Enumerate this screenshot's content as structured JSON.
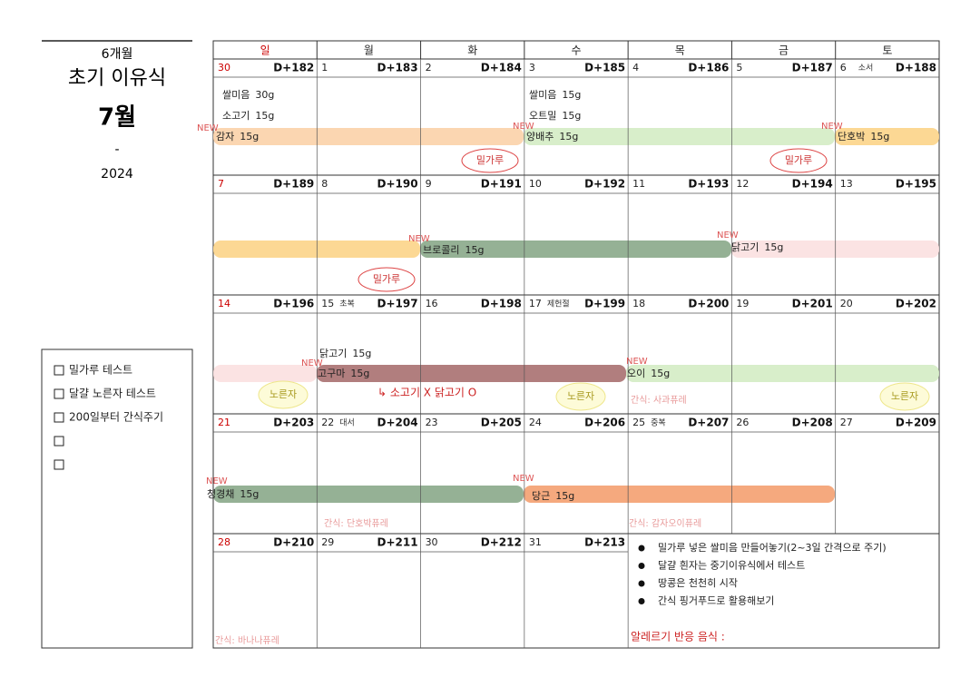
{
  "header": {
    "age": "6개월",
    "title": "초기 이유식",
    "month": "7월",
    "dash": "-",
    "year": "2024"
  },
  "checklist": [
    "밀가루 테스트",
    "달걀 노른자 테스트",
    "200일부터 간식주기"
  ],
  "weekdays": [
    "일",
    "월",
    "화",
    "수",
    "목",
    "금",
    "토"
  ],
  "days": [
    {
      "date": "30",
      "dday": "D+182"
    },
    {
      "date": "1",
      "dday": "D+183"
    },
    {
      "date": "2",
      "dday": "D+184"
    },
    {
      "date": "3",
      "dday": "D+185"
    },
    {
      "date": "4",
      "dday": "D+186"
    },
    {
      "date": "5",
      "dday": "D+187"
    },
    {
      "date": "6",
      "note": "소서",
      "dday": "D+188"
    },
    {
      "date": "7",
      "dday": "D+189"
    },
    {
      "date": "8",
      "dday": "D+190"
    },
    {
      "date": "9",
      "dday": "D+191"
    },
    {
      "date": "10",
      "dday": "D+192"
    },
    {
      "date": "11",
      "dday": "D+193"
    },
    {
      "date": "12",
      "dday": "D+194"
    },
    {
      "date": "13",
      "dday": "D+195"
    },
    {
      "date": "14",
      "dday": "D+196"
    },
    {
      "date": "15",
      "note": "초복",
      "dday": "D+197"
    },
    {
      "date": "16",
      "dday": "D+198"
    },
    {
      "date": "17",
      "note": "제헌절",
      "dday": "D+199"
    },
    {
      "date": "18",
      "dday": "D+200"
    },
    {
      "date": "19",
      "dday": "D+201"
    },
    {
      "date": "20",
      "dday": "D+202"
    },
    {
      "date": "21",
      "dday": "D+203"
    },
    {
      "date": "22",
      "note": "대서",
      "dday": "D+204"
    },
    {
      "date": "23",
      "dday": "D+205"
    },
    {
      "date": "24",
      "dday": "D+206"
    },
    {
      "date": "25",
      "note": "중복",
      "dday": "D+207"
    },
    {
      "date": "26",
      "dday": "D+208"
    },
    {
      "date": "27",
      "dday": "D+209"
    },
    {
      "date": "28",
      "dday": "D+210"
    },
    {
      "date": "29",
      "dday": "D+211"
    },
    {
      "date": "30",
      "dday": "D+212"
    },
    {
      "date": "31",
      "dday": "D+213"
    }
  ],
  "foods": [
    {
      "name": "쌀미음",
      "amount": "30g"
    },
    {
      "name": "소고기",
      "amount": "15g"
    },
    {
      "name": "감자",
      "amount": "15g"
    },
    {
      "name": "쌀미음",
      "amount": "15g"
    },
    {
      "name": "오트밀",
      "amount": "15g"
    },
    {
      "name": "양배추",
      "amount": "15g"
    },
    {
      "name": "단호박",
      "amount": "15g"
    },
    {
      "name": "브로콜리",
      "amount": "15g"
    },
    {
      "name": "닭고기",
      "amount": "15g"
    },
    {
      "name": "닭고기",
      "amount": "15g"
    },
    {
      "name": "고구마",
      "amount": "15g"
    },
    {
      "name": "오이",
      "amount": "15g"
    },
    {
      "name": "청경채",
      "amount": "15g"
    },
    {
      "name": "당근",
      "amount": "15g"
    }
  ],
  "new_tags": [
    "NEW",
    "NEW",
    "NEW",
    "NEW",
    "NEW",
    "NEW",
    "NEW",
    "NEW",
    "NEW"
  ],
  "stickers": [
    "밀가루",
    "밀가루",
    "밀가루",
    "노른자",
    "노른자",
    "노른자"
  ],
  "snacks": [
    "간식: 사과퓨레",
    "간식: 단호박퓨레",
    "간식: 감자오이퓨레",
    "간식: 바나나퓨레"
  ],
  "remark": "↳ 소고기 X 닭고기 O",
  "notes": [
    "밀가루 넣은 쌀미음 만들어놓기(2~3일 간격으로 주기)",
    "달걀 흰자는 중기이유식에서 테스트",
    "땅콩은 천천히 시작",
    "간식 핑거푸드로 활용해보기"
  ],
  "allergy_label": "알레르기 반응 음식 :"
}
